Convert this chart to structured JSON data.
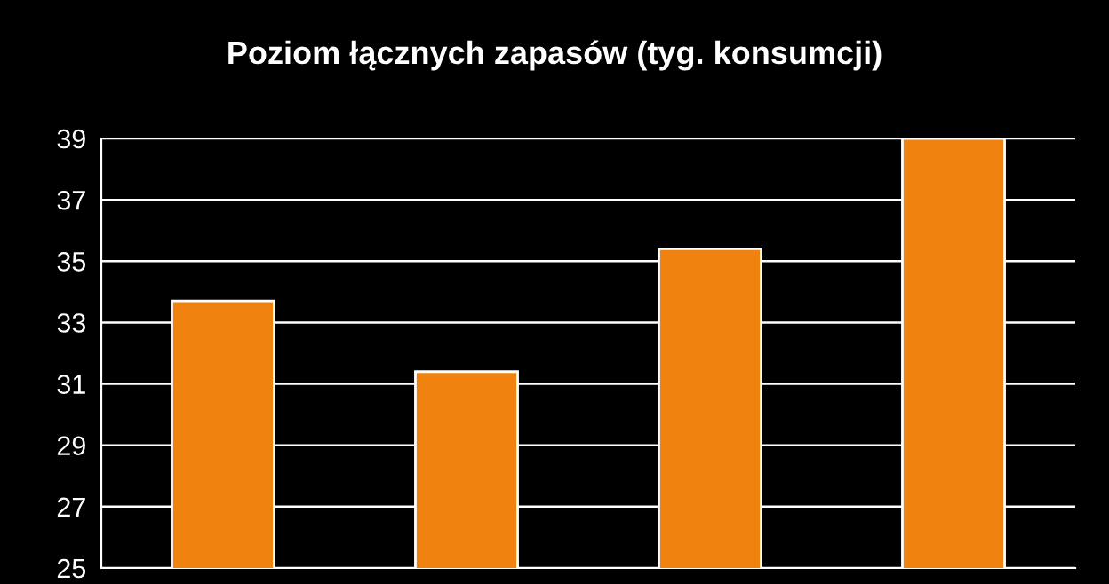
{
  "chart_data": {
    "type": "bar",
    "title": "Poziom łącznych zapasów (tyg. konsumcji)",
    "categories": [
      null,
      null,
      null,
      null
    ],
    "values": [
      33.7,
      31.4,
      35.4,
      39.0
    ],
    "color": "#f0820f",
    "ylim": [
      25,
      39
    ],
    "yticks": [
      25,
      27,
      29,
      31,
      33,
      35,
      37,
      39
    ],
    "grid": "y"
  }
}
